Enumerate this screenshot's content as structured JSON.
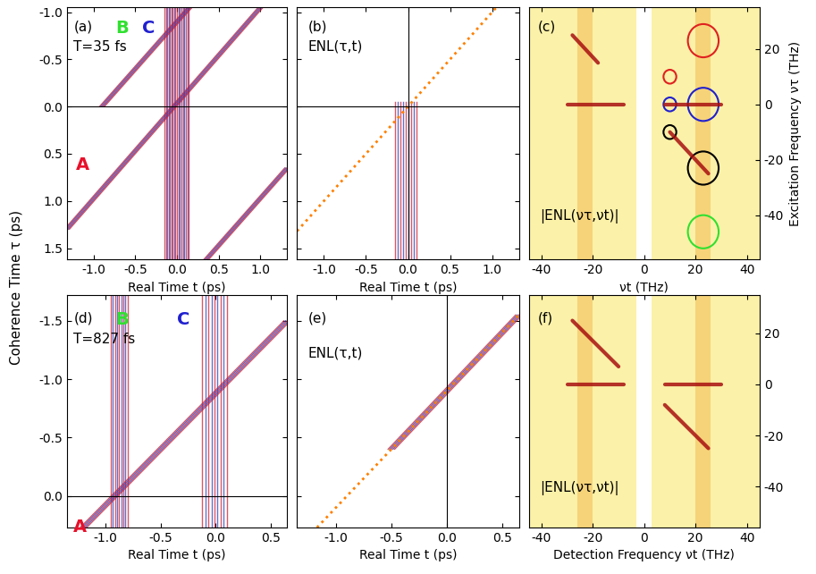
{
  "ylabel": "Coherence Time τ (ps)",
  "chart_data": [
    {
      "type": "signal_map",
      "xlabel": "Real Time t (ps)",
      "xlim": [
        -1.32,
        1.32
      ],
      "xticks": [
        -1.0,
        -0.5,
        0.0,
        0.5,
        1.0
      ],
      "ylim": [
        1.62,
        -1.05
      ],
      "yticks": [
        -1.0,
        -0.5,
        0.0,
        0.5,
        1.0,
        1.5
      ],
      "annotations": [
        {
          "text": "(a)"
        },
        {
          "text": "T=35 fs"
        },
        {
          "text": "A",
          "color": "#e8102a"
        },
        {
          "text": "B",
          "color": "#30e030"
        },
        {
          "text": "C",
          "color": "#2020d0"
        }
      ],
      "signals": [
        {
          "start": [
            -1.32,
            1.3
          ],
          "end": [
            1.0,
            -1.05
          ]
        },
        {
          "start": [
            -0.9,
            0.0
          ],
          "end": [
            0.15,
            -1.05
          ]
        },
        {
          "start": [
            0.35,
            1.62
          ],
          "end": [
            1.32,
            0.65
          ]
        }
      ],
      "bands": [
        {
          "t": [
            -0.15,
            -0.02
          ],
          "tau": [
            -1.05,
            1.62
          ]
        },
        {
          "t": [
            0.0,
            0.14
          ],
          "tau": [
            -1.05,
            1.62
          ]
        }
      ],
      "ref_lines": {
        "tau": [
          0.0
        ],
        "t": []
      }
    },
    {
      "type": "signal_map",
      "xlabel": "Real Time t (ps)",
      "xlim": [
        -1.32,
        1.32
      ],
      "xticks": [
        -1.0,
        -0.5,
        0.0,
        0.5,
        1.0
      ],
      "ylim": [
        1.62,
        -1.05
      ],
      "yticks": [
        -1.0,
        -0.5,
        0.0,
        0.5,
        1.0,
        1.5
      ],
      "tick_labels": "x",
      "annotations": [
        {
          "text": "(b)"
        },
        {
          "text": "ENL(τ,t)"
        }
      ],
      "signals": [],
      "bands": [
        {
          "t": [
            -0.15,
            0.1
          ],
          "tau": [
            -0.05,
            1.62
          ]
        }
      ],
      "dashed": {
        "start": [
          -1.32,
          1.32
        ],
        "end": [
          1.05,
          -1.05
        ],
        "color": "#ff8000"
      },
      "ref_lines": {
        "tau": [
          0.0
        ],
        "t": [
          0.0
        ]
      }
    },
    {
      "type": "spectrum_map",
      "xlabel": "νt (THz)",
      "ylabel": "Excitation Frequency ντ (THz)",
      "xlim": [
        -45,
        45
      ],
      "xticks": [
        -40,
        -20,
        0,
        20,
        40
      ],
      "ylim": [
        -56,
        35
      ],
      "yticks": [
        -40,
        -20,
        0,
        20
      ],
      "annotations": [
        {
          "text": "(c)"
        },
        {
          "text": "|ENL(ντ,νt)|"
        }
      ],
      "bands_nu": [
        -23,
        23
      ],
      "blank_band": [
        -3,
        3
      ],
      "peaks": [
        {
          "start": [
            -30,
            0
          ],
          "end": [
            -8,
            0
          ]
        },
        {
          "start": [
            8,
            0
          ],
          "end": [
            30,
            0
          ]
        },
        {
          "start": [
            -28,
            25
          ],
          "end": [
            -18,
            15
          ]
        },
        {
          "start": [
            10,
            -10
          ],
          "end": [
            25,
            -25
          ]
        }
      ],
      "circles": [
        {
          "center": [
            23,
            23
          ],
          "radius": 6,
          "color": "#e02020"
        },
        {
          "center": [
            10,
            10
          ],
          "radius": 2.5,
          "color": "#e02020"
        },
        {
          "center": [
            10,
            0
          ],
          "radius": 2.5,
          "color": "#2020d0"
        },
        {
          "center": [
            23,
            0
          ],
          "radius": 6,
          "color": "#2020d0"
        },
        {
          "center": [
            10,
            -10
          ],
          "radius": 2.5,
          "color": "#000000"
        },
        {
          "center": [
            23,
            -23
          ],
          "radius": 6,
          "color": "#000000"
        },
        {
          "center": [
            23,
            -46
          ],
          "radius": 6,
          "color": "#30e030"
        }
      ]
    },
    {
      "type": "signal_map",
      "xlabel": "Real Time t (ps)",
      "xlim": [
        -1.35,
        0.65
      ],
      "xticks": [
        -1.0,
        -0.5,
        0.0,
        0.5
      ],
      "ylim": [
        0.27,
        -1.72
      ],
      "yticks": [
        -1.5,
        -1.0,
        -0.5,
        0.0
      ],
      "annotations": [
        {
          "text": "(d)"
        },
        {
          "text": "T=827 fs"
        },
        {
          "text": "A",
          "color": "#e8102a"
        },
        {
          "text": "B",
          "color": "#30e030"
        },
        {
          "text": "C",
          "color": "#2020d0"
        }
      ],
      "signals": [
        {
          "start": [
            -1.2,
            0.27
          ],
          "end": [
            0.65,
            -1.5
          ]
        }
      ],
      "bands": [
        {
          "t": [
            -0.95,
            -0.8
          ],
          "tau": [
            -1.72,
            0.27
          ]
        },
        {
          "t": [
            -0.12,
            0.1
          ],
          "tau": [
            -1.72,
            0.27
          ]
        }
      ],
      "ref_lines": {
        "tau": [
          0.0
        ],
        "t": []
      }
    },
    {
      "type": "signal_map",
      "xlabel": "Real Time t (ps)",
      "xlim": [
        -1.35,
        0.65
      ],
      "xticks": [
        -1.0,
        -0.5,
        0.0,
        0.5
      ],
      "ylim": [
        0.27,
        -1.72
      ],
      "yticks": [
        -1.5,
        -1.0,
        -0.5,
        0.0
      ],
      "tick_labels": "x",
      "annotations": [
        {
          "text": "(e)"
        },
        {
          "text": "ENL(τ,t)"
        }
      ],
      "signals": [
        {
          "start": [
            -0.5,
            -0.4
          ],
          "end": [
            0.65,
            -1.55
          ]
        }
      ],
      "bands": [],
      "dashed": {
        "start": [
          -1.17,
          0.27
        ],
        "end": [
          0.65,
          -1.55
        ],
        "color": "#ff8000"
      },
      "ref_lines": {
        "tau": [],
        "t": [
          0.0
        ]
      }
    },
    {
      "type": "spectrum_map",
      "xlabel": "Detection Frequency νt (THz)",
      "xlim": [
        -45,
        45
      ],
      "xticks": [
        -40,
        -20,
        0,
        20,
        40
      ],
      "ylim": [
        -56,
        35
      ],
      "yticks": [
        -40,
        -20,
        0,
        20
      ],
      "annotations": [
        {
          "text": "(f)"
        },
        {
          "text": "|ENL(ντ,νt)|"
        }
      ],
      "bands_nu": [
        -23,
        23
      ],
      "blank_band": [
        -3,
        3
      ],
      "peaks": [
        {
          "start": [
            -30,
            0
          ],
          "end": [
            -8,
            0
          ]
        },
        {
          "start": [
            8,
            0
          ],
          "end": [
            30,
            0
          ]
        },
        {
          "start": [
            -28,
            25
          ],
          "end": [
            -10,
            7
          ]
        },
        {
          "start": [
            8,
            -8
          ],
          "end": [
            25,
            -25
          ]
        }
      ],
      "circles": []
    }
  ]
}
